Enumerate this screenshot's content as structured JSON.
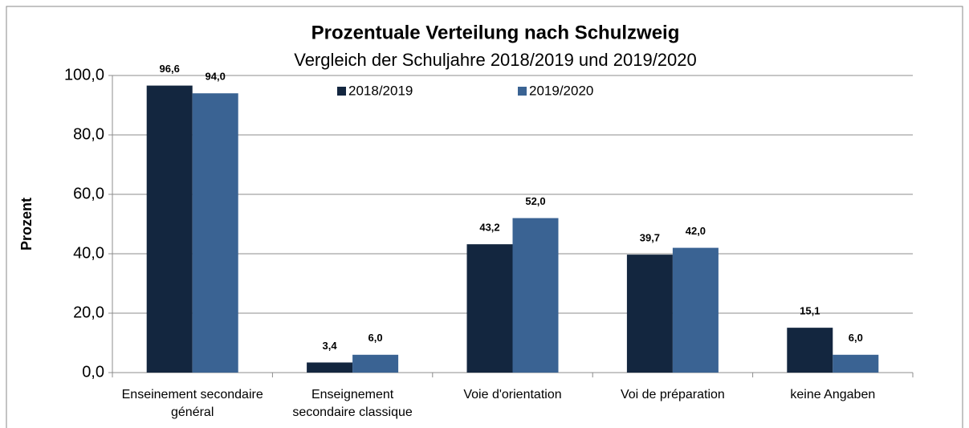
{
  "chart_data": {
    "type": "bar",
    "title": "Prozentuale Verteilung nach Schulzweig",
    "subtitle": "Vergleich der Schuljahre 2018/2019 und 2019/2020",
    "y_label": "Prozent",
    "categories": [
      "Enseinement secondaire général",
      "Enseignement secondaire classique",
      "Voie d'orientation",
      "Voi de préparation",
      "keine Angaben"
    ],
    "series": [
      {
        "name": "2018/2019",
        "color": "#13263f",
        "values": [
          96.6,
          3.4,
          43.2,
          39.7,
          15.1
        ],
        "value_labels": [
          "96,6",
          "3,4",
          "43,2",
          "39,7",
          "15,1"
        ]
      },
      {
        "name": "2019/2020",
        "color": "#3a6393",
        "values": [
          94.0,
          6.0,
          52.0,
          42.0,
          6.0
        ],
        "value_labels": [
          "94,0",
          "6,0",
          "52,0",
          "42,0",
          "6,0"
        ]
      }
    ],
    "ylim": [
      0,
      100
    ],
    "yticks": [
      {
        "value": 0,
        "label": "0,0"
      },
      {
        "value": 20,
        "label": "20,0"
      },
      {
        "value": 40,
        "label": "40,0"
      },
      {
        "value": 60,
        "label": "60,0"
      },
      {
        "value": 80,
        "label": "80,0"
      },
      {
        "value": 100,
        "label": "100,0"
      }
    ],
    "grid": true,
    "legend": "top"
  }
}
